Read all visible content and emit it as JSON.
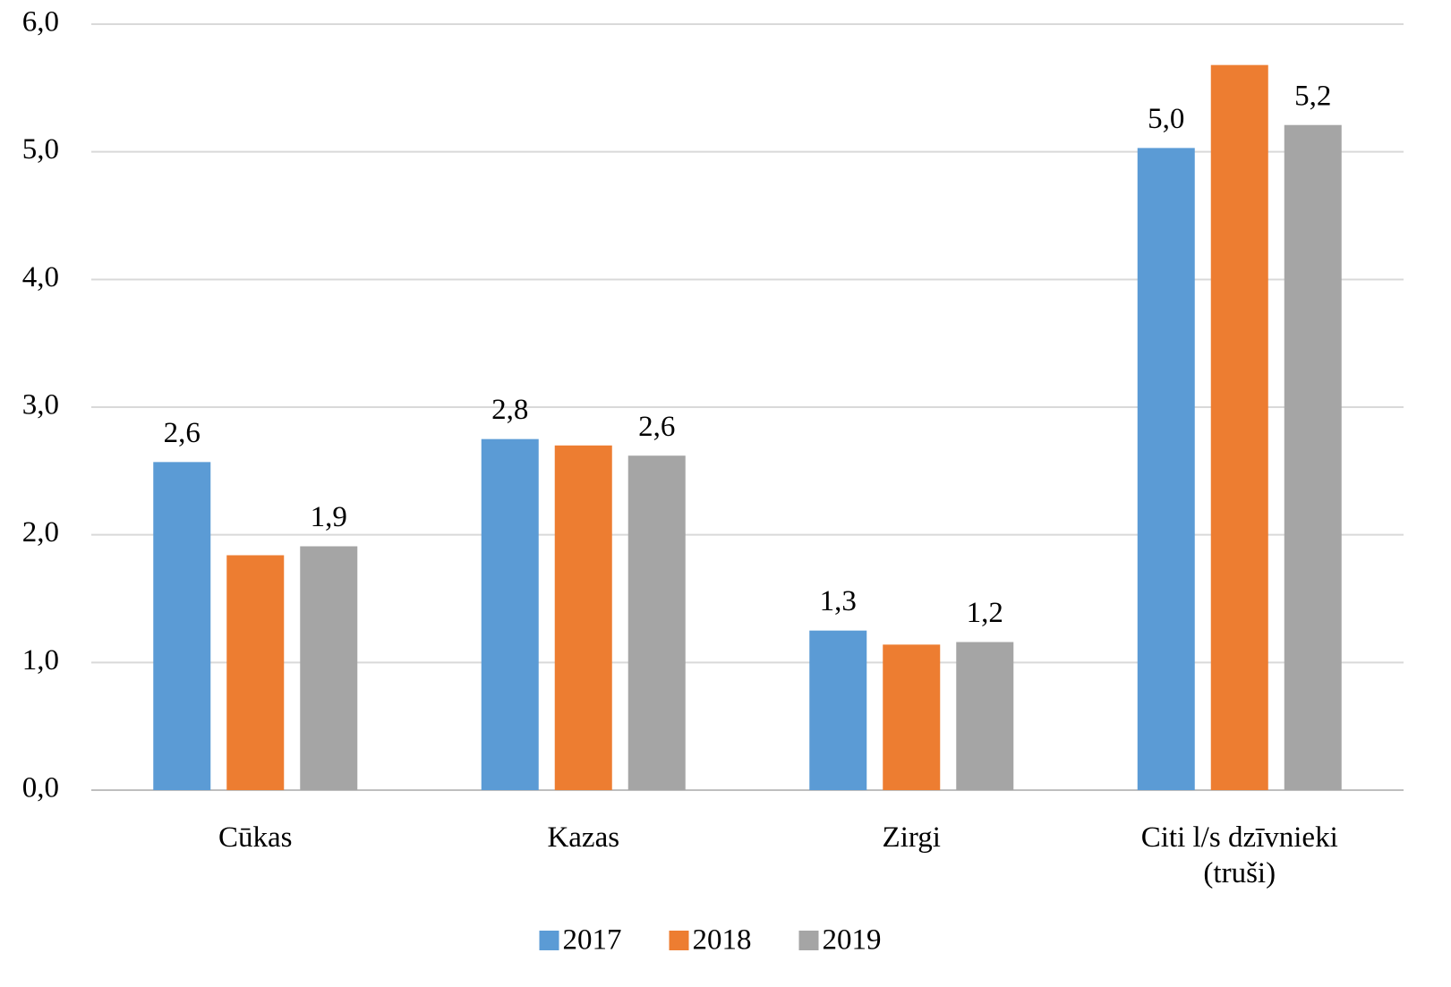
{
  "chart_data": {
    "type": "bar",
    "categories": [
      "Cūkas",
      "Kazas",
      "Zirgi",
      "Citi l/s dzīvnieki (truši)"
    ],
    "series": [
      {
        "name": "2017",
        "color": "#5b9bd5",
        "values": [
          2.57,
          2.75,
          1.25,
          5.03
        ],
        "value_labels": [
          "2,6",
          "2,8",
          "1,3",
          "5,0"
        ]
      },
      {
        "name": "2018",
        "color": "#ed7d31",
        "values": [
          1.84,
          2.7,
          1.14,
          5.68
        ]
      },
      {
        "name": "2019",
        "color": "#a5a5a5",
        "values": [
          1.91,
          2.62,
          1.16,
          5.21
        ],
        "value_labels": [
          "1,9",
          "2,6",
          "1,2",
          "5,2"
        ]
      }
    ],
    "ylim": [
      0,
      6
    ],
    "yticks": [
      {
        "value": 0,
        "label": "0,0"
      },
      {
        "value": 1,
        "label": "1,0"
      },
      {
        "value": 2,
        "label": "2,0"
      },
      {
        "value": 3,
        "label": "3,0"
      },
      {
        "value": 4,
        "label": "4,0"
      },
      {
        "value": 5,
        "label": "5,0"
      },
      {
        "value": 6,
        "label": "6,0"
      }
    ],
    "grid": true,
    "legend": "bottom"
  }
}
